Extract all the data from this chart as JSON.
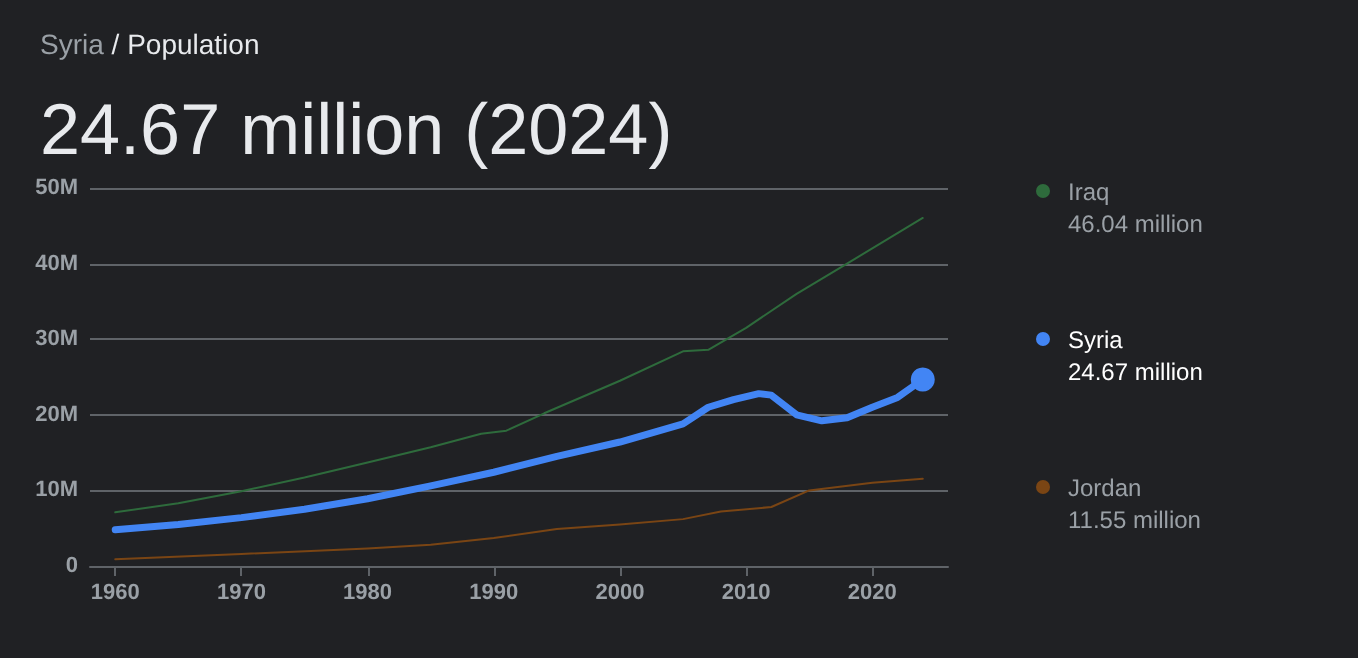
{
  "chart_data": {
    "type": "line",
    "title": "Syria / Population",
    "subtitle": "24.67 million (2024)",
    "series": [
      {
        "name": "Iraq",
        "color": "#2e6b3c",
        "x": [
          1960,
          1965,
          1970,
          1975,
          1980,
          1985,
          1989,
          1991,
          1994,
          2000,
          2005,
          2007,
          2010,
          2014,
          2018,
          2024
        ],
        "values": [
          7.1,
          8.3,
          9.9,
          11.7,
          13.7,
          15.7,
          17.5,
          17.9,
          20.2,
          24.5,
          28.4,
          28.6,
          31.5,
          36.0,
          40.0,
          46.04
        ]
      },
      {
        "name": "Syria",
        "color": "#4285f4",
        "x": [
          1960,
          1965,
          1970,
          1975,
          1980,
          1985,
          1990,
          1995,
          2000,
          2005,
          2007,
          2009,
          2011,
          2012,
          2014,
          2016,
          2018,
          2020,
          2022,
          2024
        ],
        "values": [
          4.8,
          5.5,
          6.4,
          7.5,
          8.9,
          10.6,
          12.4,
          14.5,
          16.4,
          18.8,
          21.0,
          22.0,
          22.8,
          22.6,
          20.0,
          19.2,
          19.6,
          21.0,
          22.3,
          24.67
        ]
      },
      {
        "name": "Jordan",
        "color": "#7a4514",
        "x": [
          1960,
          1970,
          1980,
          1985,
          1990,
          1995,
          2000,
          2005,
          2008,
          2012,
          2015,
          2020,
          2024
        ],
        "values": [
          0.9,
          1.6,
          2.3,
          2.8,
          3.7,
          4.9,
          5.5,
          6.2,
          7.2,
          7.8,
          10.0,
          11.0,
          11.55
        ]
      }
    ],
    "annotations": [
      "46.04 million",
      "24.67 million",
      "11.55 million"
    ],
    "xlim": [
      1958,
      2026
    ],
    "xticks": [
      1960,
      1970,
      1980,
      1990,
      2000,
      2010,
      2020
    ],
    "ylim": [
      0,
      50
    ],
    "yticks": [
      {
        "value": 0,
        "label": "0"
      },
      {
        "value": 10,
        "label": "10M"
      },
      {
        "value": 20,
        "label": "20M"
      },
      {
        "value": 30,
        "label": "30M"
      },
      {
        "value": 40,
        "label": "40M"
      },
      {
        "value": 50,
        "label": "50M"
      }
    ],
    "grid": "y",
    "legend": "right",
    "marker": "none",
    "line_style": "solid"
  }
}
